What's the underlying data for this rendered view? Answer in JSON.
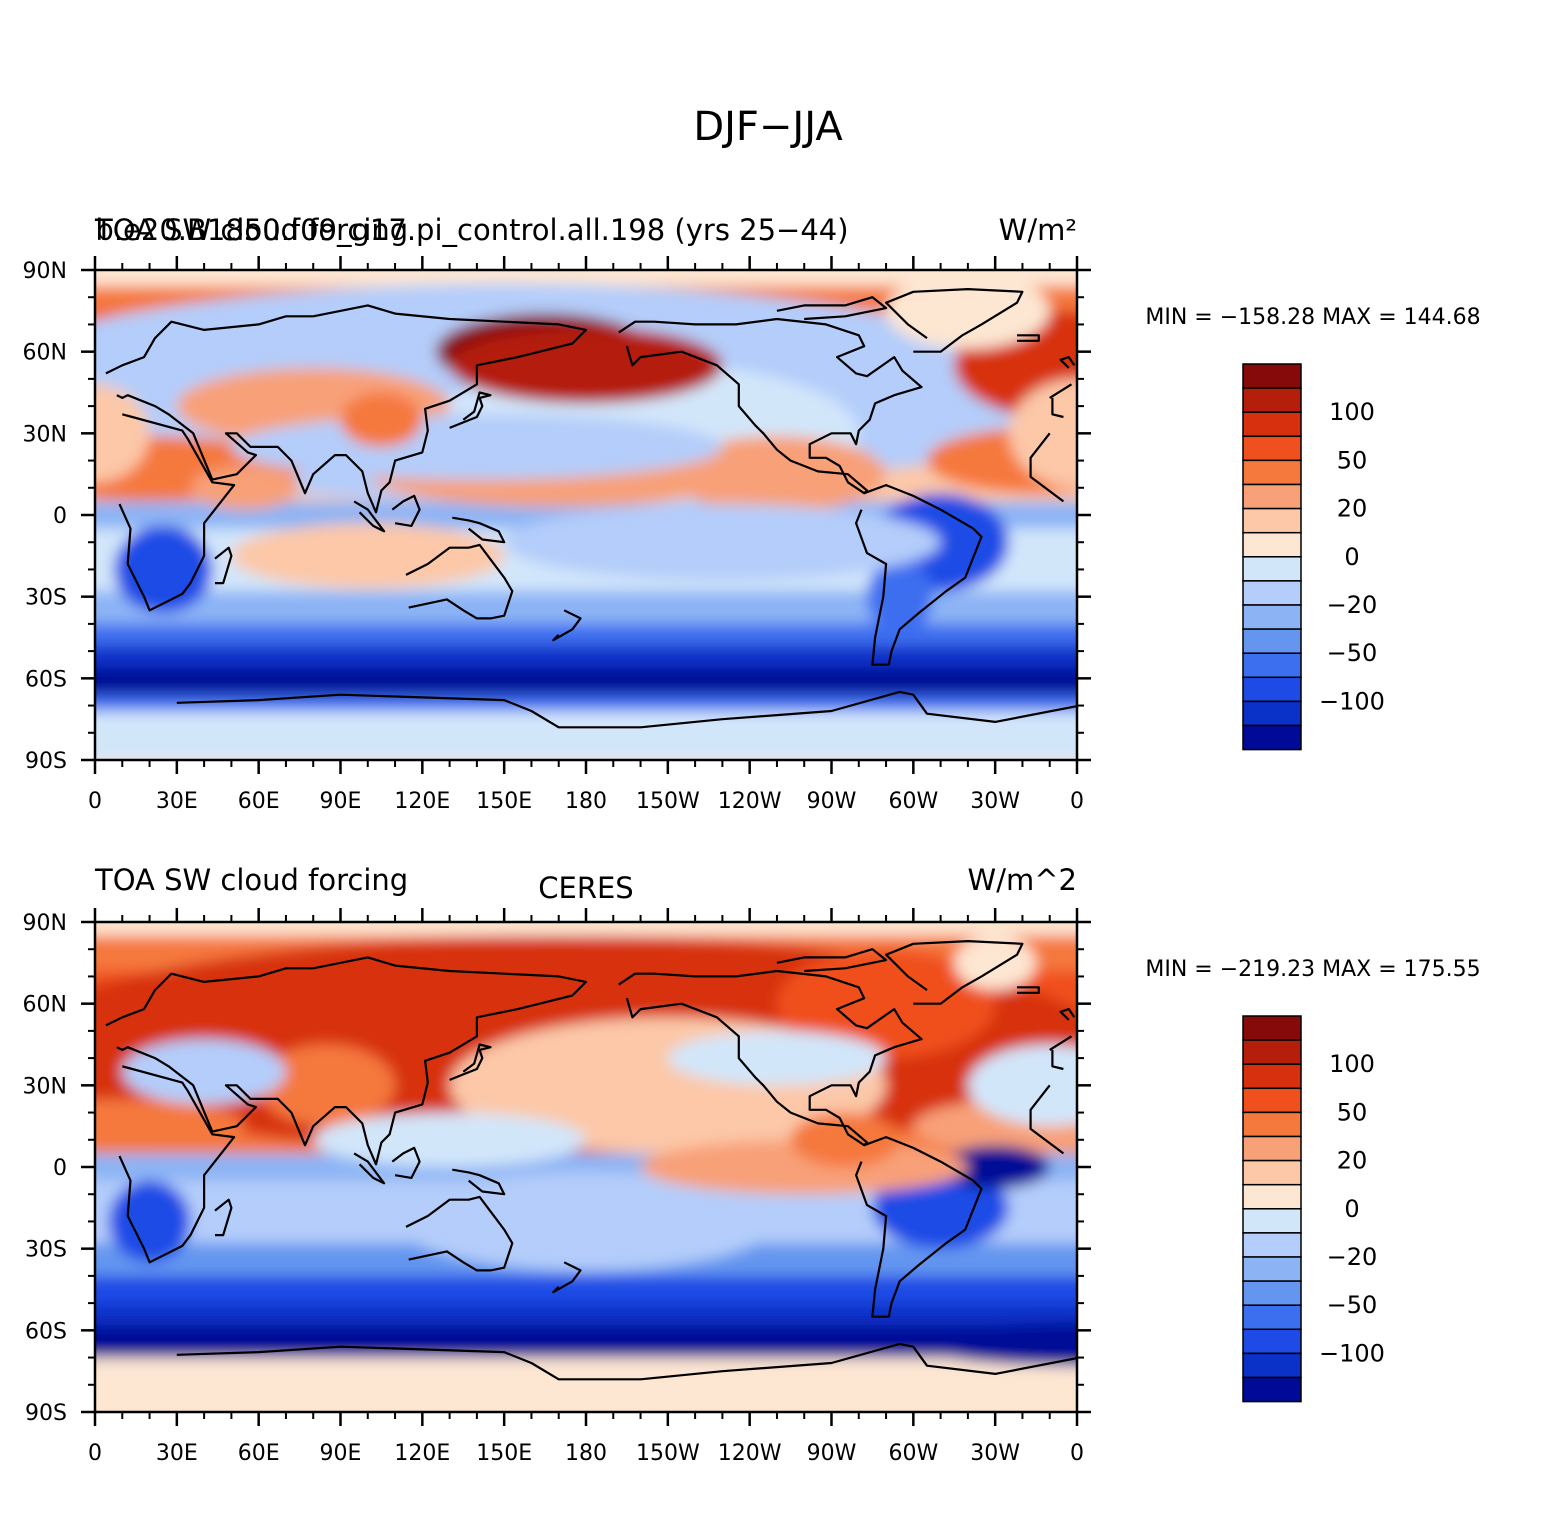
{
  "figure": {
    "title": "DJF−JJA"
  },
  "panels": [
    {
      "left_title": "TOA SW cloud forcing",
      "center_title": "b.e20.B1850.f09_g17.pi_control.all.198 (yrs 25−44)",
      "right_title": "W/m²",
      "stats": "MIN = −158.28 MAX = 144.68",
      "colorbar_labels": [
        "100",
        "50",
        "20",
        "0",
        "−20",
        "−50",
        "−100"
      ]
    },
    {
      "left_title": "TOA SW cloud forcing",
      "center_title": "CERES",
      "right_title": "W/m^2",
      "stats": "MIN = −219.23 MAX = 175.55",
      "colorbar_labels": [
        "100",
        "50",
        "20",
        "0",
        "−20",
        "−50",
        "−100"
      ]
    }
  ],
  "axes": {
    "lat_labels": [
      "90N",
      "60N",
      "30N",
      "0",
      "30S",
      "60S",
      "90S"
    ],
    "lon_labels": [
      "0",
      "30E",
      "60E",
      "90E",
      "120E",
      "150E",
      "180",
      "150W",
      "120W",
      "90W",
      "60W",
      "30W",
      "0"
    ]
  },
  "colorbar_colors": [
    "#870a0a",
    "#b41e0a",
    "#d7300f",
    "#f0501e",
    "#f5783c",
    "#f8a078",
    "#fcc8a8",
    "#fde6d2",
    "#d2e6fa",
    "#b4cdfa",
    "#8cb4f5",
    "#6496f0",
    "#3c6ef0",
    "#1e4be6",
    "#0a32c8",
    "#000a96"
  ],
  "chart_data": [
    {
      "type": "heatmap",
      "title": "DJF−JJA",
      "variable": "TOA SW cloud forcing",
      "dataset": "b.e20.B1850.f09_g17.pi_control.all.198 (yrs 25−44)",
      "units": "W/m²",
      "min": -158.28,
      "max": 144.68,
      "x_range": [
        0,
        360
      ],
      "y_range": [
        -90,
        90
      ],
      "colorbar_levels": [
        100,
        50,
        20,
        0,
        -20,
        -50,
        -100
      ]
    },
    {
      "type": "heatmap",
      "title": "DJF−JJA",
      "variable": "TOA SW cloud forcing",
      "dataset": "CERES",
      "units": "W/m^2",
      "min": -219.23,
      "max": 175.55,
      "x_range": [
        0,
        360
      ],
      "y_range": [
        -90,
        90
      ],
      "colorbar_levels": [
        100,
        50,
        20,
        0,
        -20,
        -50,
        -100
      ]
    }
  ]
}
